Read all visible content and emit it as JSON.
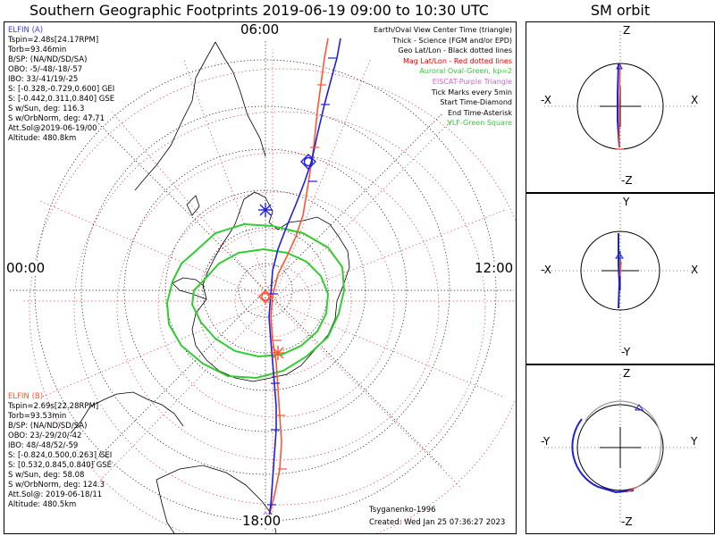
{
  "header": {
    "title": "Southern Geographic Footprints 2019-06-19 09:00 to 10:30 UTC",
    "sm_title": "SM orbit"
  },
  "map": {
    "time_labels": {
      "top": "06:00",
      "left": "00:00",
      "right": "12:00",
      "bottom": "18:00"
    },
    "colors": {
      "elfin_a": "#1f1fe0",
      "elfin_b": "#ff5533",
      "oval": "#33cc33",
      "geo_grid": "#000000",
      "mag_grid": "#dd2222",
      "title_a": "#3a3aff"
    }
  },
  "legend": [
    {
      "text": "Earth/Oval View Center Time (triangle)",
      "color": "#000000"
    },
    {
      "text": "Thick - Science (FGM and/or EPD)",
      "color": "#000000"
    },
    {
      "text": "Geo Lat/Lon - Black dotted lines",
      "color": "#000000"
    },
    {
      "text": "Mag Lat/Lon - Red dotted lines",
      "color": "#e00000"
    },
    {
      "text": "Auroral Oval-Green, kp=2",
      "color": "#33cc33"
    },
    {
      "text": "EISCAT-Purple Triangle",
      "color": "#cc66cc"
    },
    {
      "text": "Tick Marks every 5min",
      "color": "#000000"
    },
    {
      "text": "Start Time-Diamond",
      "color": "#000000"
    },
    {
      "text": "End Time-Asterisk",
      "color": "#000000"
    },
    {
      "text": "VLF-Green Square",
      "color": "#33cc33"
    }
  ],
  "elfin_a": {
    "title": "ELFIN (A)",
    "lines": [
      "Tspin=2.48s[24.17RPM]",
      "Torb=93.46min",
      "B/SP: (NA/ND/SD/SA)",
      "OBO: -5/-48/-18/-57",
      "IBO: 33/-41/19/-25",
      "S: [-0.328,-0.729,0.600] GEI",
      "S: [-0.442,0.311,0.840] GSE",
      "S w/Sun, deg: 116.3",
      "S w/OrbNorm, deg: 47.71",
      "Att.Sol@2019-06-19/00",
      "Altitude: 480.8km"
    ]
  },
  "elfin_b": {
    "title": "ELFIN (B)",
    "lines": [
      "Tspin=2.69s[22.28RPM]",
      "Torb=93.53min",
      "B/SP: (NA/ND/SD/SA)",
      "OBO: 23/-29/20/-42",
      "IBO: 48/-48/52/-59",
      "S: [-0.824,0.500,0.263] GEI",
      "S: [0.532,0.845,0.840] GSE",
      "S w/Sun, deg: 58.08",
      "S w/OrbNorm, deg: 124.3",
      "Att.Sol@: 2019-06-18/11",
      "Altitude: 480.5km"
    ]
  },
  "footer": {
    "model": "Tsyganenko-1996",
    "created": "Created: Wed Jan 25 07:36:27 2023"
  },
  "sm_panels": [
    {
      "top": "Z",
      "bottom": "-Z",
      "left": "-X",
      "right": "X"
    },
    {
      "top": "Y",
      "bottom": "-Y",
      "left": "-X",
      "right": "X"
    },
    {
      "top": "Z",
      "bottom": "-Z",
      "left": "-Y",
      "right": "Y"
    }
  ]
}
